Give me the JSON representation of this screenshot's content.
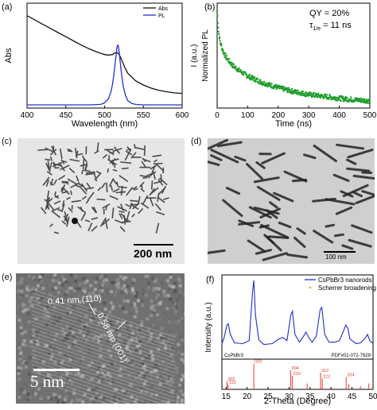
{
  "figure": {
    "panels": {
      "a": {
        "label": "(a)"
      },
      "b": {
        "label": "(b)"
      },
      "c": {
        "label": "(c)",
        "scalebar": "200 nm"
      },
      "d": {
        "label": "(d)",
        "scalebar": "100 nm"
      },
      "e": {
        "label": "(e)",
        "scalebar": "5 nm",
        "annotation_1": "0.41 nm (110)",
        "annotation_2": "0.58 nm (001)"
      },
      "f": {
        "label": "(f)"
      }
    }
  },
  "chart_data": [
    {
      "panel": "a",
      "type": "line",
      "xlabel": "Wavelength (nm)",
      "ylabel": "Abs",
      "xlim": [
        400,
        600
      ],
      "xticks": [
        400,
        450,
        500,
        550,
        600
      ],
      "legend": [
        "Abs",
        "PL"
      ],
      "legend_position": "top-right",
      "series": [
        {
          "name": "Abs",
          "color": "#111111",
          "x": [
            400,
            410,
            420,
            430,
            440,
            450,
            460,
            470,
            480,
            490,
            500,
            505,
            510,
            513,
            516,
            519,
            522,
            526,
            530,
            540,
            550,
            560,
            570,
            580,
            590,
            600
          ],
          "y": [
            0.88,
            0.84,
            0.8,
            0.76,
            0.72,
            0.68,
            0.64,
            0.6,
            0.565,
            0.535,
            0.51,
            0.505,
            0.51,
            0.525,
            0.53,
            0.51,
            0.46,
            0.39,
            0.33,
            0.26,
            0.22,
            0.19,
            0.17,
            0.155,
            0.145,
            0.14
          ]
        },
        {
          "name": "PL",
          "color": "#2233cc",
          "x": [
            400,
            480,
            495,
            500,
            505,
            508,
            510,
            512,
            514,
            516,
            517,
            518,
            520,
            522,
            524,
            527,
            530,
            535,
            540,
            550,
            560,
            600
          ],
          "y": [
            0.03,
            0.03,
            0.035,
            0.05,
            0.09,
            0.15,
            0.22,
            0.32,
            0.45,
            0.58,
            0.6,
            0.58,
            0.45,
            0.32,
            0.21,
            0.12,
            0.07,
            0.045,
            0.035,
            0.03,
            0.03,
            0.03
          ]
        }
      ]
    },
    {
      "panel": "b",
      "type": "scatter",
      "xlabel": "Time (ns)",
      "ylabel": "Normalized PL",
      "ylabel2": "I (a.u.)",
      "xlim": [
        0,
        500
      ],
      "xticks": [
        0,
        100,
        200,
        300,
        400,
        500
      ],
      "annotation_qy": "QY = 20%",
      "annotation_tau": "τ",
      "annotation_tau_sub": "1/e",
      "annotation_tau_val": " = 11 ns",
      "series": [
        {
          "name": "decay",
          "color": "#1f9e2a",
          "x": [
            0,
            5,
            10,
            20,
            30,
            40,
            50,
            75,
            100,
            150,
            200,
            250,
            300,
            350,
            400,
            450,
            500
          ],
          "y": [
            1.0,
            0.78,
            0.68,
            0.58,
            0.52,
            0.48,
            0.44,
            0.38,
            0.33,
            0.26,
            0.21,
            0.17,
            0.14,
            0.12,
            0.1,
            0.085,
            0.075
          ]
        }
      ]
    },
    {
      "panel": "f",
      "type": "line",
      "xlabel": "2-Theta (Degree)",
      "ylabel": "Intensity (a.u.)",
      "xlim": [
        14,
        50
      ],
      "xticks": [
        15,
        20,
        25,
        30,
        35,
        40,
        45,
        50
      ],
      "legend": [
        "CsPbBr3 nanorods",
        "Scherrer broadening"
      ],
      "legend_position": "top-right",
      "phase_label": "CsPbBr3",
      "pdf_label": "PDF#01-072-7929",
      "series": [
        {
          "name": "CsPbBr3 nanorods",
          "color": "#2233cc",
          "x": [
            14,
            14.5,
            15.2,
            15.5,
            16,
            17,
            19,
            20.5,
            21.3,
            21.6,
            22,
            22.8,
            24,
            26,
            27.5,
            28.5,
            29.5,
            30.4,
            30.8,
            31.4,
            32.5,
            33.5,
            34,
            34.8,
            35.5,
            36.5,
            37.4,
            37.8,
            38.5,
            39.5,
            41,
            42,
            43,
            43.5,
            44,
            44.5,
            46,
            47,
            48,
            48.7,
            49.2,
            50
          ],
          "y": [
            0.18,
            0.25,
            0.42,
            0.44,
            0.3,
            0.19,
            0.18,
            0.22,
            0.85,
            1.0,
            0.55,
            0.23,
            0.17,
            0.18,
            0.24,
            0.26,
            0.22,
            0.55,
            0.6,
            0.3,
            0.2,
            0.28,
            0.33,
            0.25,
            0.2,
            0.28,
            0.62,
            0.65,
            0.3,
            0.2,
            0.2,
            0.22,
            0.35,
            0.42,
            0.38,
            0.24,
            0.18,
            0.19,
            0.24,
            0.3,
            0.22,
            0.18
          ]
        }
      ],
      "reference_lines": [
        {
          "x": 15.2,
          "h": 0.3,
          "label": "002"
        },
        {
          "x": 15.5,
          "h": 0.18,
          "label": "110"
        },
        {
          "x": 21.6,
          "h": 0.95,
          "label": "020"
        },
        {
          "x": 30.4,
          "h": 0.7,
          "label": "004"
        },
        {
          "x": 30.8,
          "h": 0.5,
          "label": "220"
        },
        {
          "x": 34.3,
          "h": 0.22,
          "label": ""
        },
        {
          "x": 37.5,
          "h": 0.62,
          "label": "312"
        },
        {
          "x": 37.9,
          "h": 0.4,
          "label": "222"
        },
        {
          "x": 43.6,
          "h": 0.45,
          "label": "204"
        },
        {
          "x": 44.2,
          "h": 0.2,
          "label": ""
        },
        {
          "x": 47.0,
          "h": 0.12,
          "label": ""
        },
        {
          "x": 49.0,
          "h": 0.22,
          "label": ""
        }
      ]
    }
  ]
}
